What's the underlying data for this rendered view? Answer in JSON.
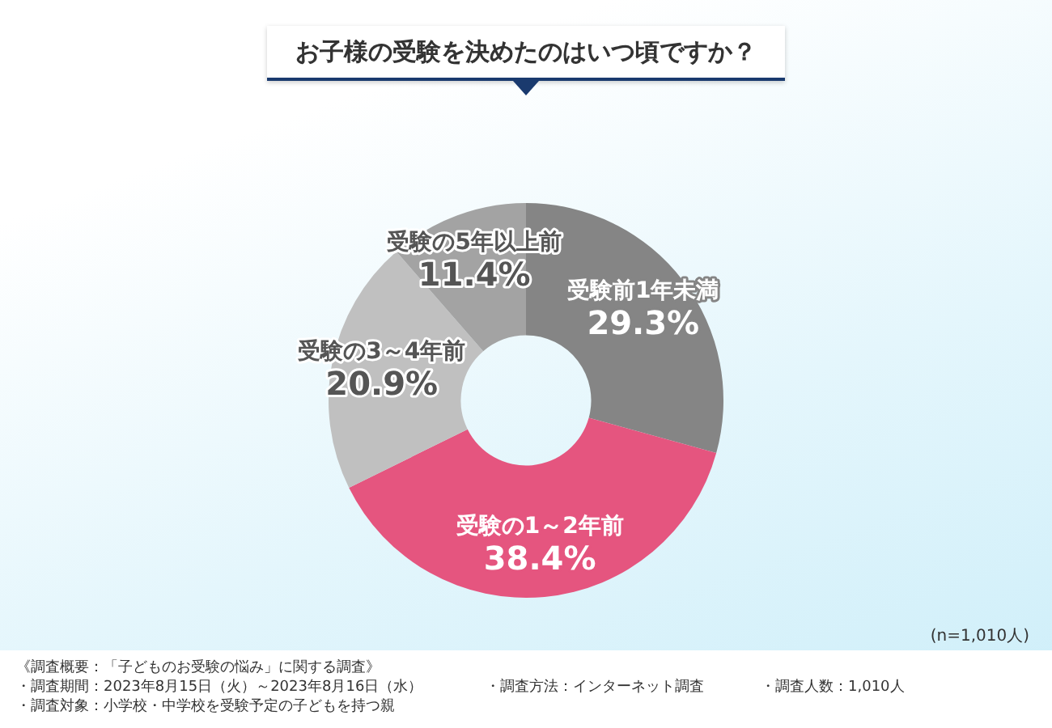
{
  "chart_data": {
    "type": "donut",
    "title": "お子様の受験を決めたのはいつ頃ですか？",
    "categories": [
      "受験前1年未満",
      "受験の1～2年前",
      "受験の3～4年前",
      "受験の5年以上前"
    ],
    "values": [
      29.3,
      38.4,
      20.9,
      11.4
    ],
    "colors": [
      "#858585",
      "#e5557f",
      "#c0c0c0",
      "#a3a3a3"
    ],
    "value_labels": [
      "29.3%",
      "38.4%",
      "20.9%",
      "11.4%"
    ],
    "annotations": [
      "(n=1,010人)",
      "《調査概要：「子どものお受験の悩み」に関する調査》",
      "・調査期間：2023年8月15日（火）～2023年8月16日（水）",
      "・調査方法：インターネット調査",
      "・調査人数：1,010人",
      "・調査対象：小学校・中学校を受験予定の子どもを持つ親"
    ],
    "legend": false
  }
}
